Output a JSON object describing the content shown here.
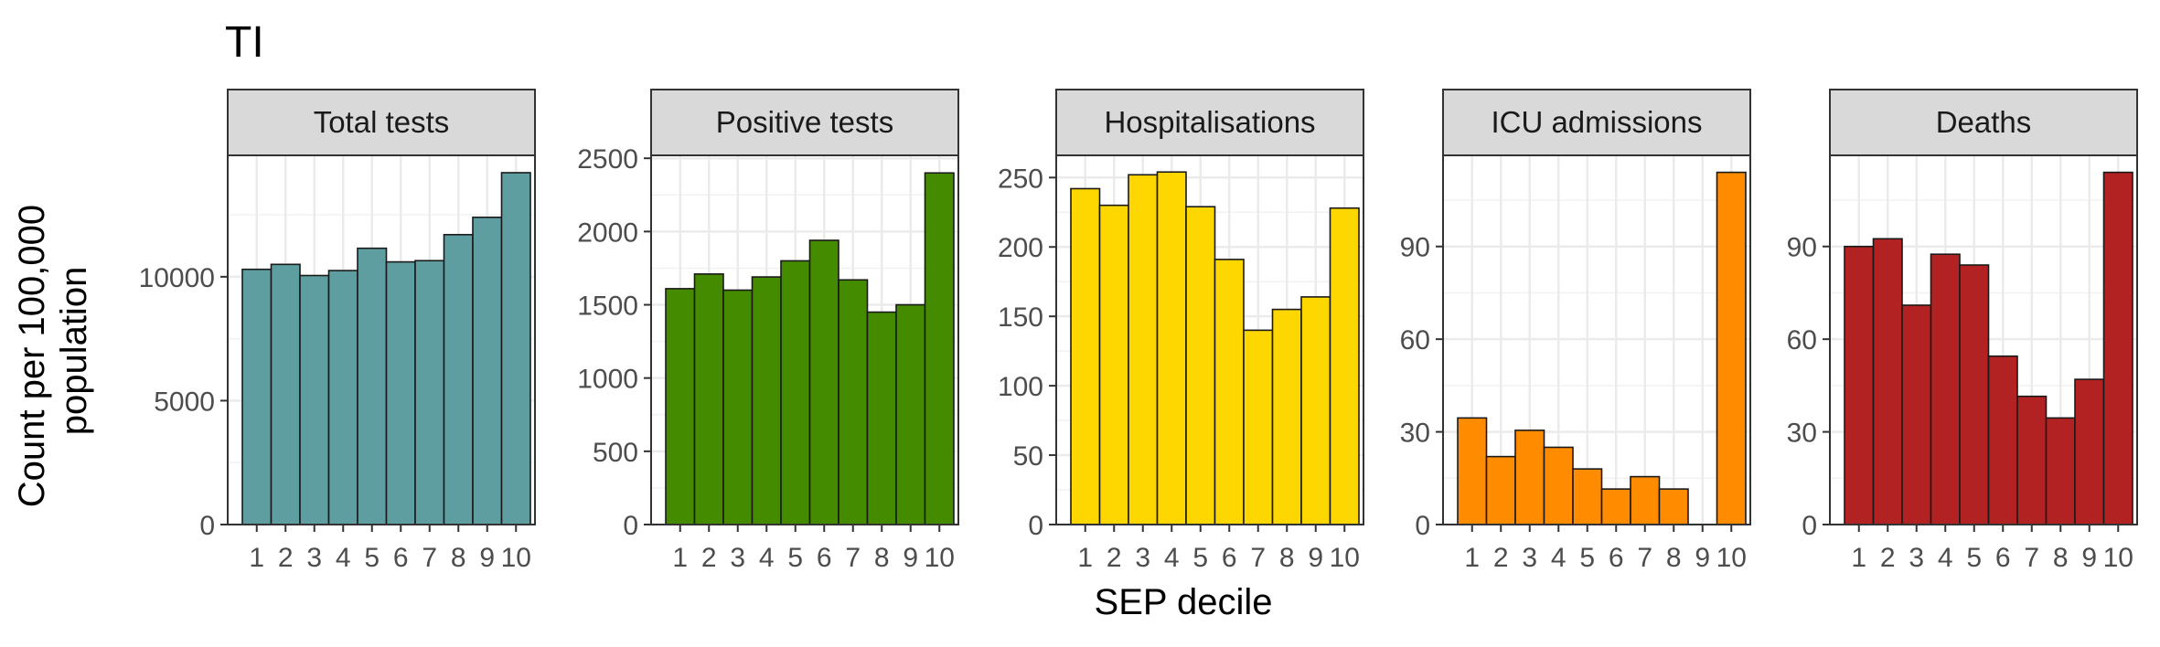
{
  "title": "TI",
  "xlabel": "SEP decile",
  "ylabel_lines": [
    "Count per 100,000",
    "population"
  ],
  "categories": [
    "1",
    "2",
    "3",
    "4",
    "5",
    "6",
    "7",
    "8",
    "9",
    "10"
  ],
  "chart_data": [
    {
      "type": "bar",
      "title": "Total tests",
      "color": "#5f9ea0",
      "categories": [
        "1",
        "2",
        "3",
        "4",
        "5",
        "6",
        "7",
        "8",
        "9",
        "10"
      ],
      "values": [
        10300,
        10500,
        10050,
        10250,
        11150,
        10600,
        10650,
        11700,
        12400,
        14200
      ],
      "yticks": [
        0,
        5000,
        10000
      ],
      "ylim": [
        0,
        14900
      ],
      "xlabel": "SEP decile",
      "ylabel": "Count per 100,000 population"
    },
    {
      "type": "bar",
      "title": "Positive tests",
      "color": "#458b00",
      "categories": [
        "1",
        "2",
        "3",
        "4",
        "5",
        "6",
        "7",
        "8",
        "9",
        "10"
      ],
      "values": [
        1610,
        1710,
        1600,
        1690,
        1800,
        1940,
        1670,
        1450,
        1500,
        2400
      ],
      "yticks": [
        0,
        500,
        1000,
        1500,
        2000,
        2500
      ],
      "ylim": [
        0,
        2520
      ],
      "xlabel": "SEP decile",
      "ylabel": "Count per 100,000 population"
    },
    {
      "type": "bar",
      "title": "Hospitalisations",
      "color": "#ffd700",
      "categories": [
        "1",
        "2",
        "3",
        "4",
        "5",
        "6",
        "7",
        "8",
        "9",
        "10"
      ],
      "values": [
        242,
        230,
        252,
        254,
        229,
        191,
        140,
        155,
        164,
        228
      ],
      "yticks": [
        0,
        50,
        100,
        150,
        200,
        250
      ],
      "ylim": [
        0,
        266
      ],
      "xlabel": "SEP decile",
      "ylabel": "Count per 100,000 population"
    },
    {
      "type": "bar",
      "title": "ICU admissions",
      "color": "#ff8c00",
      "categories": [
        "1",
        "2",
        "3",
        "4",
        "5",
        "6",
        "7",
        "8",
        "9",
        "10"
      ],
      "values": [
        34.5,
        22,
        30.5,
        25,
        18,
        11.5,
        15.5,
        11.5,
        0,
        114
      ],
      "yticks": [
        0,
        30,
        60,
        90
      ],
      "ylim": [
        0,
        119.5
      ],
      "xlabel": "SEP decile",
      "ylabel": "Count per 100,000 population"
    },
    {
      "type": "bar",
      "title": "Deaths",
      "color": "#b22222",
      "categories": [
        "1",
        "2",
        "3",
        "4",
        "5",
        "6",
        "7",
        "8",
        "9",
        "10"
      ],
      "values": [
        90,
        92.5,
        71,
        87.5,
        84,
        54.5,
        41.5,
        34.5,
        47,
        114
      ],
      "yticks": [
        0,
        30,
        60,
        90
      ],
      "ylim": [
        0,
        119.5
      ],
      "xlabel": "SEP decile",
      "ylabel": "Count per 100,000 population"
    }
  ]
}
